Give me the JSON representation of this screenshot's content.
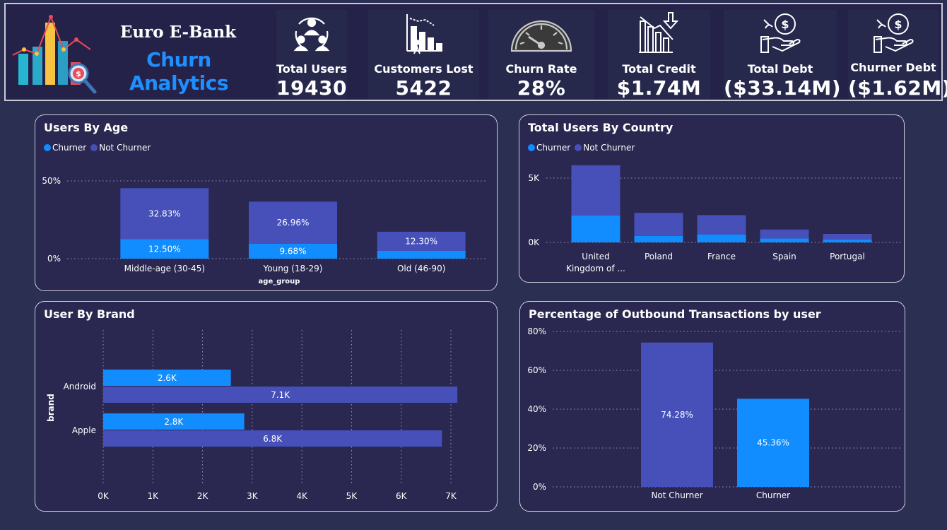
{
  "header": {
    "brand_title": "Euro E-Bank",
    "brand_subtitle": "Churn Analytics",
    "kpis": [
      {
        "icon": "users-network-icon",
        "label": "Total Users",
        "value": "19430"
      },
      {
        "icon": "bar-chart-decline-icon",
        "label": "Customers Lost",
        "value": "5422"
      },
      {
        "icon": "speedometer-icon",
        "label": "Churn Rate",
        "value": "28%"
      },
      {
        "icon": "declining-chart-arrow-icon",
        "label": "Total Credit",
        "value": "$1.74M"
      },
      {
        "icon": "hand-money-icon",
        "label": "Total Debt",
        "value": "($33.14M)"
      },
      {
        "icon": "hand-money-icon",
        "label": "Churner Debt",
        "value": "($1.62M)"
      }
    ]
  },
  "colors": {
    "churner": "#118dff",
    "not_churner": "#4650b8",
    "panel": "#2a2750",
    "background": "#2b2f52"
  },
  "chart_data": [
    {
      "type": "bar",
      "stacked": true,
      "title": "Users By Age",
      "legend": [
        "Churner",
        "Not Churner"
      ],
      "legend_position": "top-left",
      "categories": [
        "Middle-age (30-45)",
        "Young (18-29)",
        "Old (46-90)"
      ],
      "series": [
        {
          "name": "Churner",
          "values": [
            12.5,
            9.68,
            5.0
          ],
          "labels": [
            "12.50%",
            "9.68%",
            ""
          ]
        },
        {
          "name": "Not Churner",
          "values": [
            32.83,
            26.96,
            12.3
          ],
          "labels": [
            "32.83%",
            "26.96%",
            "12.30%"
          ]
        }
      ],
      "xlabel": "age_group",
      "ylabel": "",
      "ylim": [
        0,
        50
      ],
      "yticks": [
        "0%",
        "50%"
      ],
      "grid": true
    },
    {
      "type": "bar",
      "stacked": true,
      "title": "Total Users By Country",
      "legend": [
        "Churner",
        "Not Churner"
      ],
      "legend_position": "top-left",
      "categories": [
        "United Kingdom of ...",
        "Poland",
        "France",
        "Spain",
        "Portugal"
      ],
      "category_lines": [
        [
          "United",
          "Kingdom of ..."
        ],
        [
          "Poland"
        ],
        [
          "France"
        ],
        [
          "Spain"
        ],
        [
          "Portugal"
        ]
      ],
      "series": [
        {
          "name": "Churner",
          "values": [
            2100,
            500,
            620,
            300,
            230
          ]
        },
        {
          "name": "Not Churner",
          "values": [
            3900,
            1800,
            1500,
            700,
            430
          ]
        }
      ],
      "ylim": [
        0,
        6000
      ],
      "yticks": [
        "0K",
        "5K"
      ],
      "grid": true
    },
    {
      "type": "bar",
      "orientation": "horizontal",
      "title": "User By Brand",
      "categories": [
        "Android",
        "Apple"
      ],
      "series": [
        {
          "name": "Churner",
          "values": [
            2570,
            2840
          ],
          "labels": [
            "2.6K",
            "2.8K"
          ]
        },
        {
          "name": "Not Churner",
          "values": [
            7130,
            6820
          ],
          "labels": [
            "7.1K",
            "6.8K"
          ]
        }
      ],
      "ylabel": "brand",
      "xlim": [
        0,
        7000
      ],
      "xticks": [
        "0K",
        "1K",
        "2K",
        "3K",
        "4K",
        "5K",
        "6K",
        "7K"
      ],
      "grid": true
    },
    {
      "type": "bar",
      "title": "Percentage of Outbound Transactions by user",
      "categories": [
        "Not Churner",
        "Churner"
      ],
      "values": [
        74.28,
        45.36
      ],
      "labels": [
        "74.28%",
        "45.36%"
      ],
      "ylim": [
        0,
        80
      ],
      "yticks": [
        "0%",
        "20%",
        "40%",
        "60%",
        "80%"
      ],
      "grid": true
    }
  ]
}
